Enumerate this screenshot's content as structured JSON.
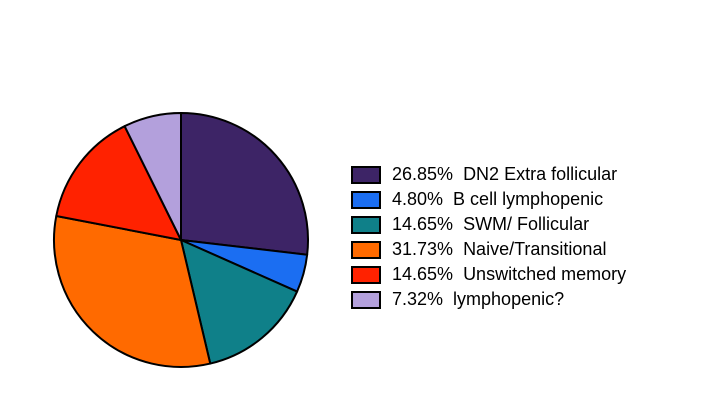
{
  "chart_data": {
    "type": "pie",
    "categories": [
      "DN2 Extra follicular",
      "B cell lymphopenic",
      "SWM/ Follicular",
      "Naive/Transitional",
      "Unswitched memory",
      "lymphopenic?"
    ],
    "values": [
      26.85,
      4.8,
      14.65,
      31.73,
      14.65,
      7.32
    ],
    "value_labels": [
      "26.85%",
      "4.80%",
      "14.65%",
      "31.73%",
      "14.65%",
      "7.32%"
    ],
    "colors": [
      "#3d2466",
      "#1b6ef2",
      "#0f8089",
      "#ff6a00",
      "#ff2200",
      "#b3a0dc"
    ]
  }
}
